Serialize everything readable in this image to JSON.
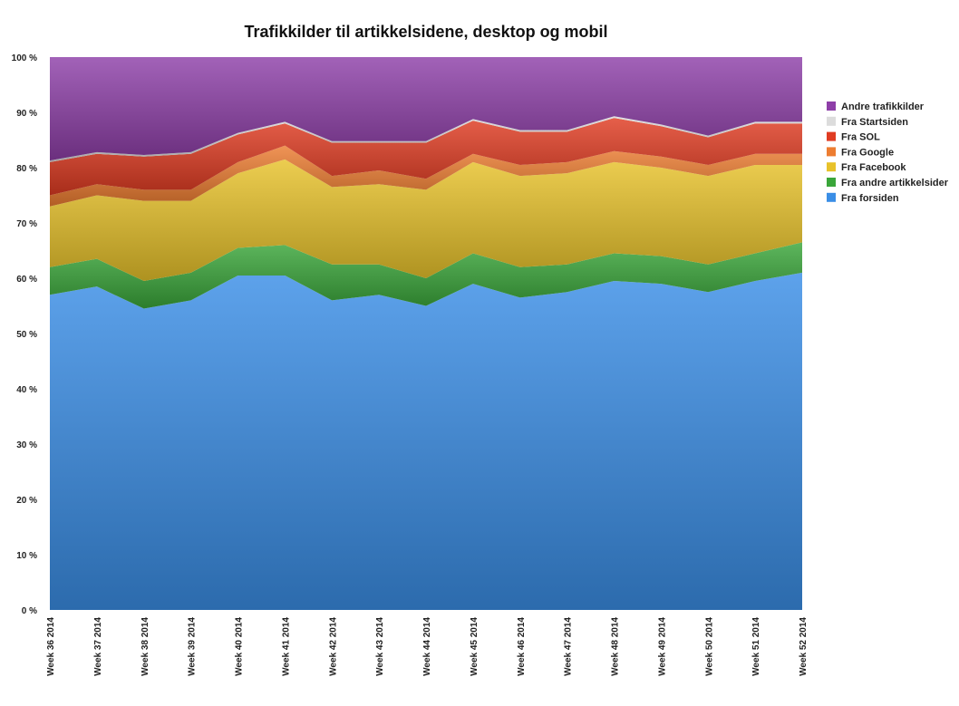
{
  "chart_data": {
    "type": "area",
    "stacked": true,
    "normalized": true,
    "title": "Trafikkilder til artikkelsidene, desktop og mobil",
    "xlabel": "",
    "ylabel": "",
    "ylim": [
      0,
      100
    ],
    "y_ticks": [
      "0 %",
      "10 %",
      "20 %",
      "30 %",
      "40 %",
      "50 %",
      "60 %",
      "70 %",
      "80 %",
      "90 %",
      "100 %"
    ],
    "categories": [
      "Week 36 2014",
      "Week 37 2014",
      "Week 38 2014",
      "Week 39 2014",
      "Week 40 2014",
      "Week 41 2014",
      "Week 42 2014",
      "Week 43 2014",
      "Week 44 2014",
      "Week 45 2014",
      "Week 46 2014",
      "Week 47 2014",
      "Week 48 2014",
      "Week 49 2014",
      "Week 50 2014",
      "Week 51 2014",
      "Week 52 2014"
    ],
    "legend_position": "right",
    "series": [
      {
        "name": "Fra forsiden",
        "color": "#3a8ee6",
        "values": [
          57,
          58.5,
          54.5,
          56,
          60.5,
          60.5,
          56,
          57,
          55,
          59,
          56.5,
          57.5,
          59.5,
          59,
          57.5,
          59.5,
          61
        ]
      },
      {
        "name": "Fra andre artikkelsider",
        "color": "#3aa63a",
        "values": [
          5,
          5,
          5,
          5,
          5,
          5.5,
          6.5,
          5.5,
          5,
          5.5,
          5.5,
          5,
          5,
          5,
          5,
          5,
          5.5
        ]
      },
      {
        "name": "Fra Facebook",
        "color": "#e8c22a",
        "values": [
          11,
          11.5,
          14.5,
          13,
          13.5,
          15.5,
          14,
          14.5,
          16,
          16.5,
          16.5,
          16.5,
          16.5,
          16,
          16,
          16,
          14
        ]
      },
      {
        "name": "Fra Google",
        "color": "#ed7d31",
        "values": [
          2,
          2,
          2,
          2,
          2,
          2.5,
          2,
          2.5,
          2,
          1.5,
          2,
          2,
          2,
          2,
          2,
          2,
          2
        ]
      },
      {
        "name": "Fra SOL",
        "color": "#e03c22",
        "values": [
          6,
          5.5,
          6,
          6.5,
          5,
          4,
          6,
          5,
          6.5,
          6,
          6,
          5.5,
          6,
          5.5,
          5,
          5.5,
          5.5
        ]
      },
      {
        "name": "Fra Startsiden",
        "color": "#dcdcdc",
        "values": [
          0.3,
          0.3,
          0.3,
          0.3,
          0.3,
          0.3,
          0.3,
          0.3,
          0.3,
          0.3,
          0.3,
          0.3,
          0.3,
          0.3,
          0.3,
          0.3,
          0.3
        ]
      },
      {
        "name": "Andre trafikkilder",
        "color": "#8e3fa8",
        "values": [
          18.7,
          17.2,
          17.7,
          17.2,
          13.7,
          11.7,
          15.2,
          15.2,
          15.2,
          11.2,
          13.2,
          13.2,
          10.7,
          12.2,
          14.2,
          11.7,
          11.7
        ]
      }
    ],
    "legend_order": [
      "Andre trafikkilder",
      "Fra Startsiden",
      "Fra SOL",
      "Fra Google",
      "Fra Facebook",
      "Fra andre artikkelsider",
      "Fra forsiden"
    ]
  }
}
